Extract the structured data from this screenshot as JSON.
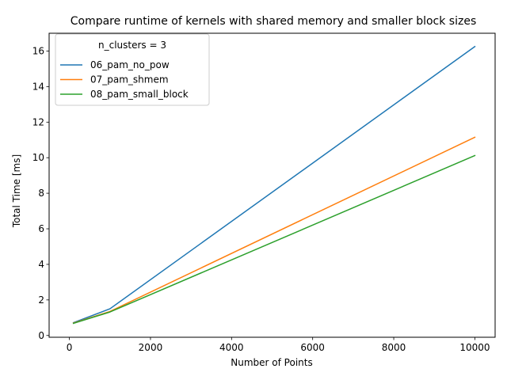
{
  "chart_data": {
    "type": "line",
    "title": "Compare runtime of kernels with shared memory and smaller block sizes",
    "xlabel": "Number of Points",
    "ylabel": "Total Time [ms]",
    "xlim": [
      -500,
      10500
    ],
    "ylim": [
      -0.1,
      17.0
    ],
    "xticks": [
      0,
      2000,
      4000,
      6000,
      8000,
      10000
    ],
    "yticks": [
      0,
      2,
      4,
      6,
      8,
      10,
      12,
      14,
      16
    ],
    "grid": false,
    "legend": {
      "title": "n_clusters = 3",
      "placement": "upper-left"
    },
    "x": [
      100,
      1000,
      10000
    ],
    "series": [
      {
        "name": "06_pam_no_pow",
        "color": "#1f77b4",
        "values": [
          0.72,
          1.5,
          16.25
        ]
      },
      {
        "name": "07_pam_shmem",
        "color": "#ff7f0e",
        "values": [
          0.7,
          1.35,
          11.15
        ]
      },
      {
        "name": "08_pam_small_block",
        "color": "#2ca02c",
        "values": [
          0.68,
          1.32,
          10.12
        ]
      }
    ]
  }
}
